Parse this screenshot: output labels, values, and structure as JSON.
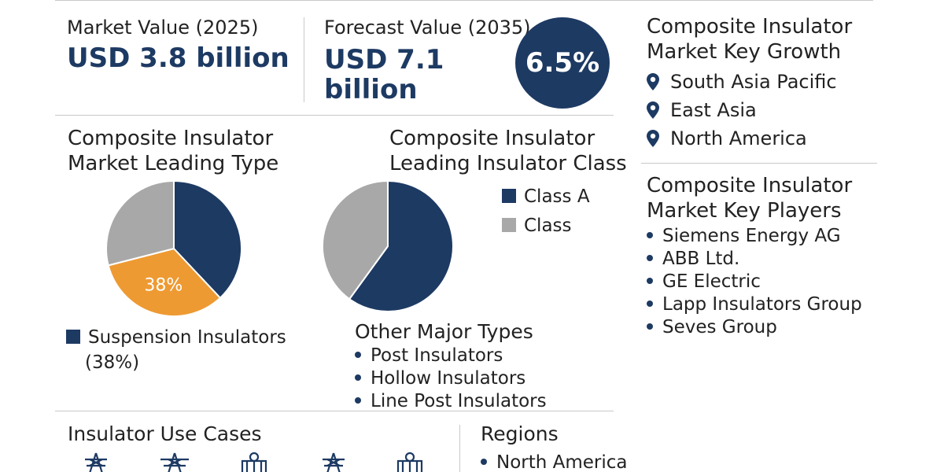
{
  "stats": {
    "market_value_label": "Market Value (2025)",
    "market_value": "USD 3.8 billion",
    "forecast_label": "Forecast Value (2035)",
    "forecast_value_line1": "USD 7.1",
    "forecast_value_line2": "billion",
    "cagr": "6.5%"
  },
  "growth": {
    "title_line1": "Composite Insulator",
    "title_line2": "Market Key Growth",
    "regions": [
      "South Asia Pacific",
      "East Asia",
      "North America"
    ]
  },
  "players": {
    "title_line1": "Composite Insulator",
    "title_line2": "Market Key Players",
    "items": [
      "Siemens Energy AG",
      "ABB Ltd.",
      "GE Electric",
      "Lapp Insulators Group",
      "Seves Group"
    ]
  },
  "type_chart": {
    "title_line1": "Composite Insulator",
    "title_line2": "Market Leading Type",
    "slice_label": "38%",
    "legend_line1": "Suspension Insulators",
    "legend_line2": "(38%)"
  },
  "class_chart": {
    "title_line1": "Composite Insulator",
    "title_line2": "Leading Insulator Class",
    "legend": [
      "Class A",
      "Class"
    ]
  },
  "other_types": {
    "title": "Other Major Types",
    "items": [
      "Post Insulators",
      "Hollow Insulators",
      "Line Post Insulators"
    ]
  },
  "use_cases": {
    "title": "Insulator Use Cases",
    "icons": [
      "transmission-tower-icon",
      "transmission-tower-icon",
      "substation-icon",
      "transmission-tower-icon",
      "substation-icon"
    ]
  },
  "regions": {
    "title": "Regions",
    "items": [
      "North America"
    ]
  },
  "colors": {
    "navy": "#1d3a63",
    "orange": "#ee9a32",
    "gray": "#a8a8a8"
  },
  "chart_data": [
    {
      "type": "pie",
      "title": "Composite Insulator Market Leading Type",
      "slices": [
        {
          "label": "Suspension Insulators",
          "value": 38,
          "color": "#1d3a63"
        },
        {
          "label": "",
          "value": 33,
          "color": "#ee9a32"
        },
        {
          "label": "",
          "value": 29,
          "color": "#a8a8a8"
        }
      ],
      "legend_placement": "bottom-left"
    },
    {
      "type": "pie",
      "title": "Composite Insulator Leading Insulator Class",
      "slices": [
        {
          "label": "Class A",
          "value": 60,
          "color": "#1d3a63"
        },
        {
          "label": "Class",
          "value": 40,
          "color": "#a8a8a8"
        }
      ],
      "legend_placement": "right"
    }
  ]
}
